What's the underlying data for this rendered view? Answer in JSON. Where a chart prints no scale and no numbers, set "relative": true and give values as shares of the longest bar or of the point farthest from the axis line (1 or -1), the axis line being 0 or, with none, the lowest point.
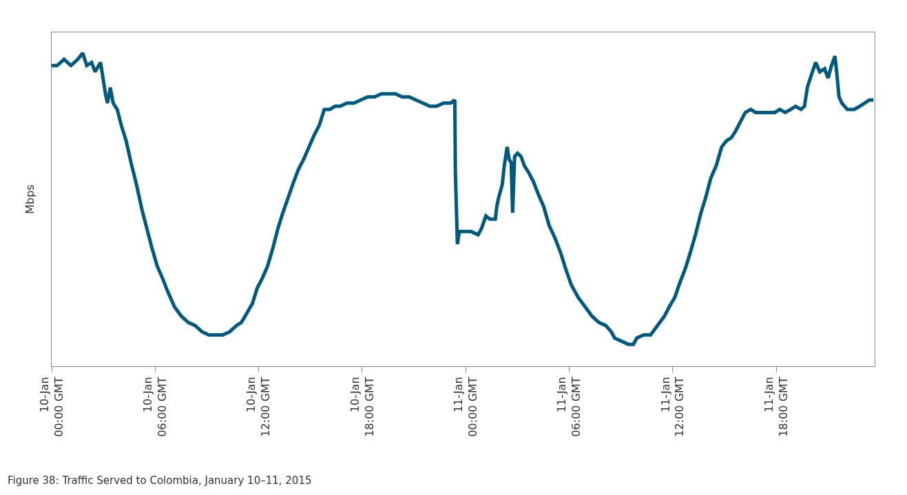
{
  "chart_data": {
    "type": "line",
    "relative": true,
    "ylabel": "Mbps",
    "color": "#005a80",
    "marker": "none",
    "line_style": "solid",
    "xlim": [
      "2015-01-10T00:00",
      "2015-01-11T23:42"
    ],
    "xticks": [
      {
        "value": "2015-01-10T00:00",
        "label": "10-Jan 00:00 GMT"
      },
      {
        "value": "2015-01-10T06:00",
        "label": "10-Jan 06:00 GMT"
      },
      {
        "value": "2015-01-10T12:00",
        "label": "10-Jan 12:00 GMT"
      },
      {
        "value": "2015-01-10T18:00",
        "label": "10-Jan 18:00 GMT"
      },
      {
        "value": "2015-01-11T00:00",
        "label": "11-Jan 00:00 GMT"
      },
      {
        "value": "2015-01-11T06:00",
        "label": "11-Jan 06:00 GMT"
      },
      {
        "value": "2015-01-11T12:00",
        "label": "11-Jan 12:00 GMT"
      },
      {
        "value": "2015-01-11T18:00",
        "label": "11-Jan 18:00 GMT"
      }
    ],
    "x": [
      "2015-01-10T00:00",
      "2015-01-10T00:19",
      "2015-01-10T00:43",
      "2015-01-10T01:07",
      "2015-01-10T01:31",
      "2015-01-10T01:48",
      "2015-01-10T02:02",
      "2015-01-10T02:19",
      "2015-01-10T02:31",
      "2015-01-10T02:50",
      "2015-01-10T03:07",
      "2015-01-10T03:14",
      "2015-01-10T03:24",
      "2015-01-10T03:34",
      "2015-01-10T03:48",
      "2015-01-10T04:02",
      "2015-01-10T04:19",
      "2015-01-10T04:36",
      "2015-01-10T04:55",
      "2015-01-10T05:14",
      "2015-01-10T05:31",
      "2015-01-10T05:48",
      "2015-01-10T06:07",
      "2015-01-10T06:26",
      "2015-01-10T06:43",
      "2015-01-10T07:07",
      "2015-01-10T07:31",
      "2015-01-10T07:55",
      "2015-01-10T08:19",
      "2015-01-10T08:43",
      "2015-01-10T09:07",
      "2015-01-10T09:31",
      "2015-01-10T09:55",
      "2015-01-10T10:19",
      "2015-01-10T10:43",
      "2015-01-10T11:00",
      "2015-01-10T11:19",
      "2015-01-10T11:38",
      "2015-01-10T11:55",
      "2015-01-10T12:12",
      "2015-01-10T12:31",
      "2015-01-10T12:50",
      "2015-01-10T13:07",
      "2015-01-10T13:24",
      "2015-01-10T13:43",
      "2015-01-10T14:02",
      "2015-01-10T14:19",
      "2015-01-10T14:36",
      "2015-01-10T14:55",
      "2015-01-10T15:14",
      "2015-01-10T15:31",
      "2015-01-10T15:48",
      "2015-01-10T16:07",
      "2015-01-10T16:26",
      "2015-01-10T16:43",
      "2015-01-10T17:07",
      "2015-01-10T17:31",
      "2015-01-10T17:55",
      "2015-01-10T18:19",
      "2015-01-10T18:43",
      "2015-01-10T19:07",
      "2015-01-10T19:31",
      "2015-01-10T19:55",
      "2015-01-10T20:19",
      "2015-01-10T20:43",
      "2015-01-10T21:07",
      "2015-01-10T21:31",
      "2015-01-10T21:55",
      "2015-01-10T22:19",
      "2015-01-10T22:43",
      "2015-01-10T23:07",
      "2015-01-10T23:22",
      "2015-01-10T23:24",
      "2015-01-10T23:31",
      "2015-01-10T23:38",
      "2015-01-10T23:55",
      "2015-01-11T00:19",
      "2015-01-11T00:43",
      "2015-01-11T00:55",
      "2015-01-11T01:10",
      "2015-01-11T01:24",
      "2015-01-11T01:43",
      "2015-01-11T01:48",
      "2015-01-11T01:55",
      "2015-01-11T02:07",
      "2015-01-11T02:14",
      "2015-01-11T02:24",
      "2015-01-11T02:31",
      "2015-01-11T02:38",
      "2015-01-11T02:43",
      "2015-01-11T02:50",
      "2015-01-11T03:00",
      "2015-01-11T03:12",
      "2015-01-11T03:24",
      "2015-01-11T03:38",
      "2015-01-11T03:55",
      "2015-01-11T04:12",
      "2015-01-11T04:31",
      "2015-01-11T04:50",
      "2015-01-11T05:10",
      "2015-01-11T05:31",
      "2015-01-11T05:48",
      "2015-01-11T06:07",
      "2015-01-11T06:31",
      "2015-01-11T06:55",
      "2015-01-11T07:19",
      "2015-01-11T07:43",
      "2015-01-11T08:07",
      "2015-01-11T08:26",
      "2015-01-11T08:38",
      "2015-01-11T09:02",
      "2015-01-11T09:26",
      "2015-01-11T09:43",
      "2015-01-11T09:55",
      "2015-01-11T10:19",
      "2015-01-11T10:43",
      "2015-01-11T11:07",
      "2015-01-11T11:31",
      "2015-01-11T11:48",
      "2015-01-11T12:07",
      "2015-01-11T12:26",
      "2015-01-11T12:43",
      "2015-01-11T13:00",
      "2015-01-11T13:19",
      "2015-01-11T13:38",
      "2015-01-11T13:55",
      "2015-01-11T14:12",
      "2015-01-11T14:31",
      "2015-01-11T14:50",
      "2015-01-11T15:07",
      "2015-01-11T15:24",
      "2015-01-11T15:38",
      "2015-01-11T15:55",
      "2015-01-11T16:12",
      "2015-01-11T16:31",
      "2015-01-11T16:48",
      "2015-01-11T17:07",
      "2015-01-11T17:31",
      "2015-01-11T17:55",
      "2015-01-11T18:12",
      "2015-01-11T18:31",
      "2015-01-11T18:50",
      "2015-01-11T19:07",
      "2015-01-11T19:26",
      "2015-01-11T19:38",
      "2015-01-11T19:48",
      "2015-01-11T20:02",
      "2015-01-11T20:17",
      "2015-01-11T20:31",
      "2015-01-11T20:48",
      "2015-01-11T21:00",
      "2015-01-11T21:12",
      "2015-01-11T21:24",
      "2015-01-11T21:31",
      "2015-01-11T21:38",
      "2015-01-11T21:48",
      "2015-01-11T22:07",
      "2015-01-11T22:31",
      "2015-01-11T22:50",
      "2015-01-11T23:07",
      "2015-01-11T23:24",
      "2015-01-11T23:38"
    ],
    "values": [
      0.96,
      0.96,
      0.98,
      0.96,
      0.98,
      1.0,
      0.96,
      0.97,
      0.94,
      0.97,
      0.87,
      0.84,
      0.89,
      0.84,
      0.82,
      0.77,
      0.72,
      0.65,
      0.58,
      0.5,
      0.44,
      0.38,
      0.32,
      0.28,
      0.24,
      0.19,
      0.16,
      0.14,
      0.13,
      0.11,
      0.1,
      0.1,
      0.1,
      0.11,
      0.13,
      0.14,
      0.17,
      0.2,
      0.25,
      0.28,
      0.32,
      0.38,
      0.44,
      0.49,
      0.54,
      0.59,
      0.63,
      0.66,
      0.7,
      0.74,
      0.77,
      0.82,
      0.82,
      0.83,
      0.83,
      0.84,
      0.84,
      0.85,
      0.86,
      0.86,
      0.87,
      0.87,
      0.87,
      0.86,
      0.86,
      0.85,
      0.84,
      0.83,
      0.83,
      0.84,
      0.84,
      0.85,
      0.62,
      0.39,
      0.43,
      0.43,
      0.43,
      0.42,
      0.44,
      0.48,
      0.47,
      0.47,
      0.51,
      0.54,
      0.58,
      0.64,
      0.7,
      0.66,
      0.65,
      0.49,
      0.67,
      0.68,
      0.67,
      0.64,
      0.62,
      0.59,
      0.55,
      0.51,
      0.45,
      0.41,
      0.36,
      0.31,
      0.26,
      0.22,
      0.19,
      0.16,
      0.14,
      0.13,
      0.11,
      0.09,
      0.08,
      0.07,
      0.07,
      0.09,
      0.1,
      0.1,
      0.13,
      0.16,
      0.19,
      0.22,
      0.27,
      0.31,
      0.36,
      0.42,
      0.49,
      0.54,
      0.6,
      0.64,
      0.7,
      0.72,
      0.73,
      0.75,
      0.78,
      0.81,
      0.82,
      0.81,
      0.81,
      0.81,
      0.81,
      0.82,
      0.81,
      0.82,
      0.83,
      0.82,
      0.83,
      0.89,
      0.93,
      0.97,
      0.94,
      0.95,
      0.92,
      0.96,
      0.99,
      0.93,
      0.86,
      0.84,
      0.82,
      0.82,
      0.83,
      0.84,
      0.85,
      0.85
    ],
    "annotations": [
      "Figure 38: Traffic Served to Colombia, January 10–11, 2015"
    ]
  }
}
